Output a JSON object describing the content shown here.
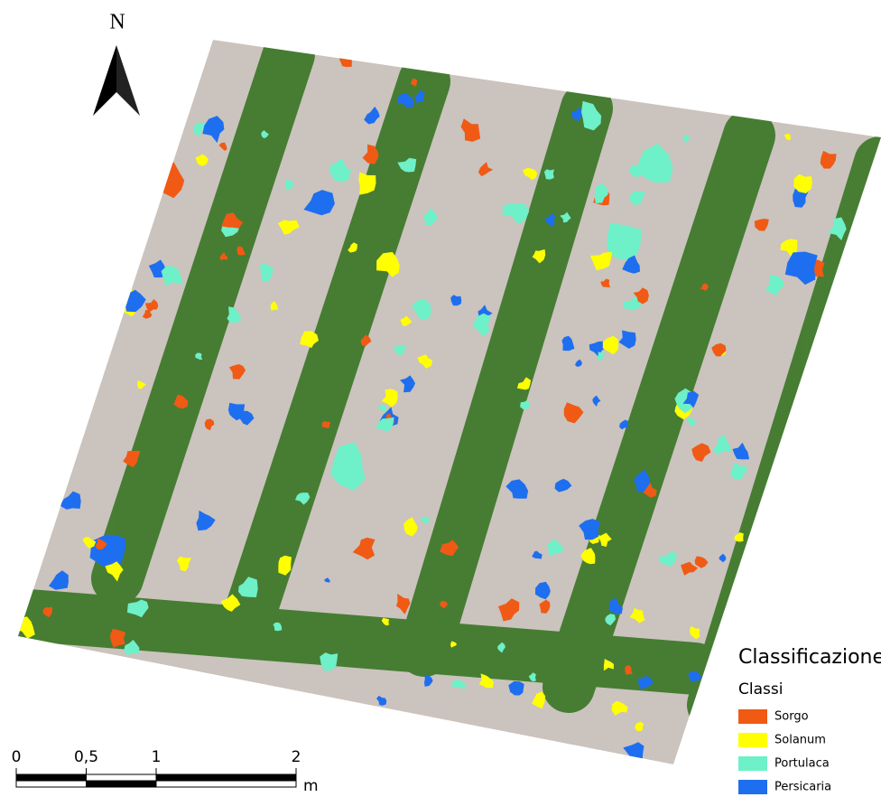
{
  "north_arrow": {
    "label": "N"
  },
  "scale_bar": {
    "ticks": [
      0,
      {
        "value": 0.5,
        "label": "0,5"
      },
      1,
      2
    ],
    "unit": "m"
  },
  "legend": {
    "title": "Classificazione",
    "subtitle": "Classi",
    "items": [
      {
        "label": "Sorgo",
        "color": "#f05a14"
      },
      {
        "label": "Solanum",
        "color": "#ffff00"
      },
      {
        "label": "Portulaca",
        "color": "#6ef0c8"
      },
      {
        "label": "Persicaria",
        "color": "#1e6ef0"
      }
    ]
  }
}
